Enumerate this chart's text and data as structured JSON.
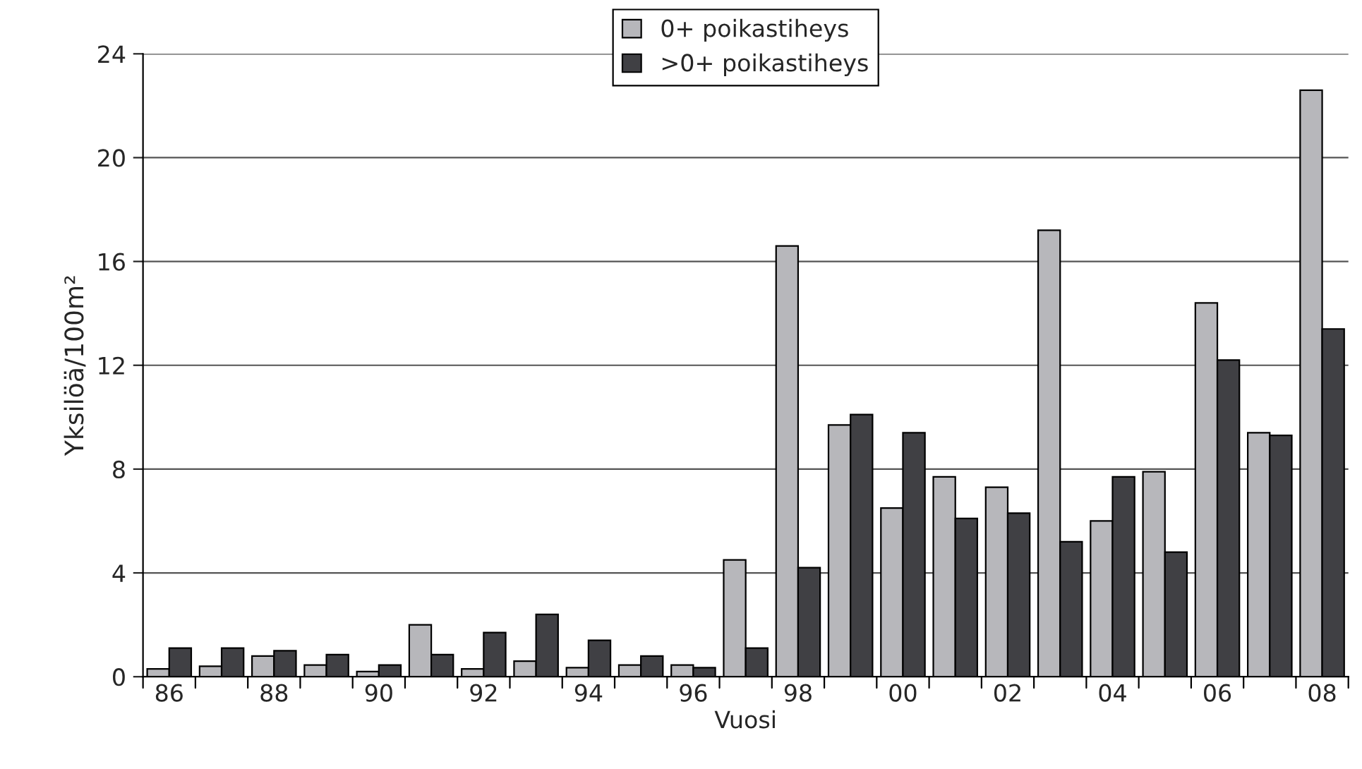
{
  "chart_data": {
    "type": "bar",
    "xlabel": "Vuosi",
    "ylabel": "Yksilöä/100m²",
    "categories": [
      "86",
      null,
      "88",
      null,
      "90",
      null,
      "92",
      null,
      "94",
      null,
      "96",
      null,
      "98",
      null,
      "00",
      null,
      "02",
      null,
      "04",
      null,
      "06",
      null,
      "08"
    ],
    "series": [
      {
        "name": "0+ poikastiheys",
        "color": "#b7b7bb",
        "values": [
          0.3,
          0.4,
          0.8,
          0.45,
          0.2,
          2.0,
          0.3,
          0.6,
          0.35,
          0.45,
          0.45,
          4.5,
          16.6,
          9.7,
          6.5,
          7.7,
          7.3,
          17.2,
          6.0,
          7.9,
          14.4,
          9.4,
          22.6
        ]
      },
      {
        "name": ">0+ poikastiheys",
        "color": "#404044",
        "values": [
          1.1,
          1.1,
          1.0,
          0.85,
          0.45,
          0.85,
          1.7,
          2.4,
          1.4,
          0.8,
          0.35,
          1.1,
          4.2,
          10.1,
          9.4,
          6.1,
          6.3,
          5.2,
          7.7,
          4.8,
          12.2,
          9.3,
          13.4
        ]
      }
    ],
    "ylim": [
      0,
      24
    ],
    "yticks": [
      0,
      4,
      8,
      12,
      16,
      20,
      24
    ],
    "grid": "y",
    "legend": "top"
  }
}
